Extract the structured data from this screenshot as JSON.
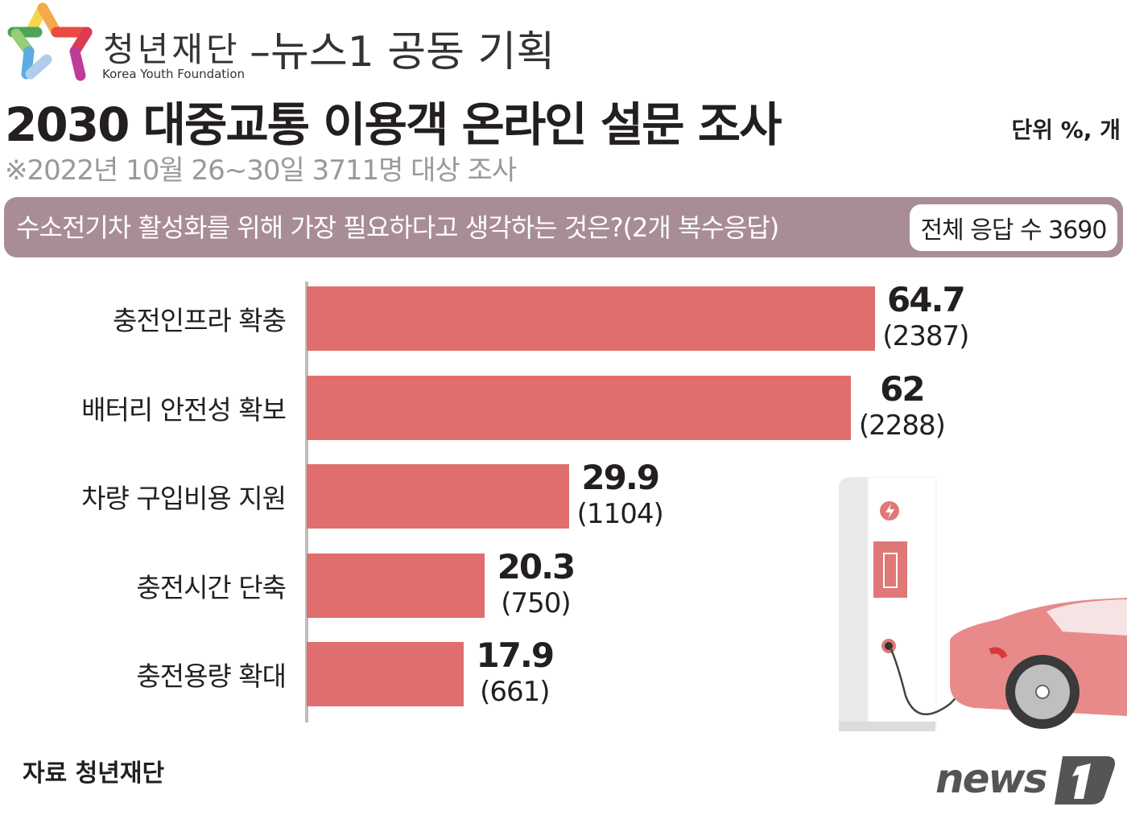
{
  "header": {
    "org_name": "청년재단",
    "collab": "–뉴스1 공동 기획",
    "org_name_en": "Korea Youth Foundation",
    "title": "2030 대중교통 이용객 온라인 설문 조사",
    "subtitle": "※2022년 10월 26~30일 3711명 대상 조사",
    "unit": "단위 %, 개"
  },
  "question": {
    "text": "수소전기차 활성화를 위해 가장 필요하다고 생각하는 것은?(2개 복수응답)",
    "total": "전체 응답 수 3690"
  },
  "chart_data": {
    "type": "bar",
    "orientation": "horizontal",
    "categories": [
      "충전인프라 확충",
      "배터리 안전성 확보",
      "차량 구입비용 지원",
      "충전시간 단축",
      "충전용량 확대"
    ],
    "values": [
      64.7,
      62,
      29.9,
      20.3,
      17.9
    ],
    "value_labels": [
      "64.7",
      "62",
      "29.9",
      "20.3",
      "17.9"
    ],
    "counts": [
      2387,
      2288,
      1104,
      750,
      661
    ],
    "count_labels": [
      "(2387)",
      "(2288)",
      "(1104)",
      "(750)",
      "(661)"
    ],
    "bar_color": "#e06e6e",
    "grid": false
  },
  "footer": {
    "source": "자료 청년재단",
    "brand": "news1"
  },
  "colors": {
    "banner": "#a98d94",
    "bar": "#e06e6e",
    "car": "#e88a8a"
  }
}
